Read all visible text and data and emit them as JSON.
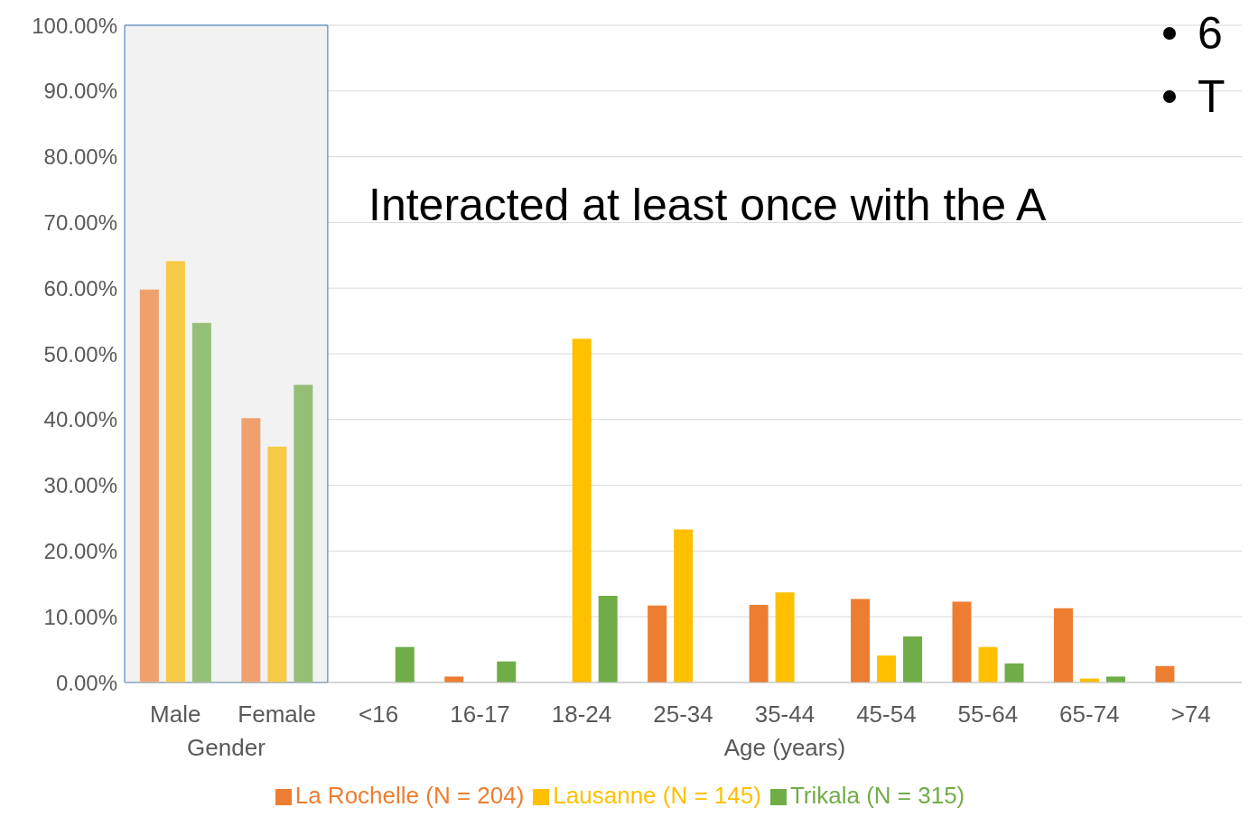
{
  "chart_data": {
    "type": "bar",
    "categories": [
      "Male",
      "Female",
      "<16",
      "16-17",
      "18-24",
      "25-34",
      "35-44",
      "45-54",
      "55-64",
      "65-74",
      ">74"
    ],
    "xlabel": "Age (years)",
    "series": [
      {
        "name": "La Rochelle (N = 204)",
        "color": "#ed7d31",
        "colors": [
          "#f0a06c",
          "#f0a06c",
          "#ed7d31",
          "#ed7d31",
          "#ed7d31",
          "#ed7d31",
          "#ed7d31",
          "#ed7d31",
          "#ed7d31",
          "#ed7d31",
          "#ed7d31"
        ],
        "values": [
          59.8,
          40.2,
          0,
          0.9,
          null,
          11.7,
          11.8,
          12.7,
          12.3,
          11.3,
          2.5
        ]
      },
      {
        "name": "Lausanne (N = 145)",
        "color": "#ffc000",
        "colors": [
          "#f7ca45",
          "#f7ca45",
          "#ffc000",
          "#ffc000",
          "#ffc000",
          "#ffc000",
          "#ffc000",
          "#ffc000",
          "#ffc000",
          "#ffc000",
          "#ffc000"
        ],
        "values": [
          64.1,
          35.9,
          0,
          0,
          52.3,
          23.3,
          13.7,
          4.1,
          5.4,
          0.6,
          0
        ]
      },
      {
        "name": "Trikala (N = 315)",
        "color": "#70ad47",
        "colors": [
          "#95bf76",
          "#95bf76",
          "#70ad47",
          "#70ad47",
          "#70ad47",
          "#70ad47",
          "#70ad47",
          "#70ad47",
          "#70ad47",
          "#70ad47",
          "#70ad47"
        ],
        "values": [
          54.7,
          45.3,
          5.4,
          3.2,
          13.2,
          null,
          null,
          7.0,
          2.9,
          0.9,
          0
        ]
      }
    ],
    "ylim": [
      0,
      100
    ],
    "yticks": [
      {
        "value": 0,
        "label": "0.00%"
      },
      {
        "value": 10,
        "label": "10.00%"
      },
      {
        "value": 20,
        "label": "20.00%"
      },
      {
        "value": 30,
        "label": "30.00%"
      },
      {
        "value": 40,
        "label": "40.00%"
      },
      {
        "value": 50,
        "label": "50.00%"
      },
      {
        "value": 60,
        "label": "60.00%"
      },
      {
        "value": 70,
        "label": "70.00%"
      },
      {
        "value": 80,
        "label": "80.00%"
      },
      {
        "value": 90,
        "label": "90.00%"
      },
      {
        "value": 100,
        "label": "100.00%"
      }
    ],
    "bands": [
      {
        "axis": "x",
        "from": "Male",
        "to": "Female",
        "color": "#f2f2f2"
      }
    ],
    "annotations": [
      "Gender",
      "Interacted at least once with the A",
      "6",
      "T"
    ],
    "grid": "y",
    "legend": "bottom"
  }
}
